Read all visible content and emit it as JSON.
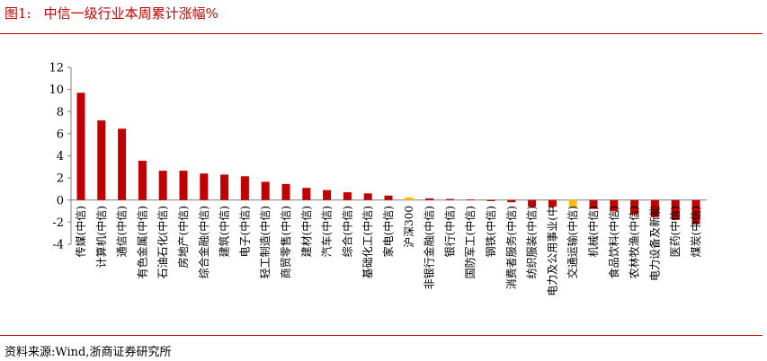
{
  "header": {
    "figure_label": "图1:",
    "title": "中信一级行业本周累计涨幅%"
  },
  "footer": {
    "source": "资料来源:Wind,浙商证券研究所"
  },
  "colors": {
    "accent": "#c00000",
    "bar": "#c00000",
    "highlight": "#ffc000"
  },
  "chart_data": {
    "type": "bar",
    "title": "中信一级行业本周累计涨幅%",
    "xlabel": "",
    "ylabel": "",
    "ylim": [
      -4,
      12
    ],
    "yticks": [
      -4,
      -2,
      0,
      2,
      4,
      6,
      8,
      10,
      12
    ],
    "grid": false,
    "legend": "none",
    "categories": [
      "传媒(中信)",
      "计算机(中信)",
      "通信(中信)",
      "有色金属(中信)",
      "石油石化(中信)",
      "房地产(中信)",
      "综合金融(中信)",
      "建筑(中信)",
      "电子(中信)",
      "轻工制造(中信)",
      "商贸零售(中信)",
      "建材(中信)",
      "汽车(中信)",
      "综合(中信)",
      "基础化工(中信)",
      "家电(中信)",
      "沪深300",
      "非银行金融(中信)",
      "银行(中信)",
      "国防军工(中信)",
      "钢铁(中信)",
      "消费者服务(中信)",
      "纺织服装(中信)",
      "电力及公用事业(中",
      "交通运输(中信)",
      "机械(中信)",
      "食品饮料(中信)",
      "农林牧渔(中信)",
      "电力设备及新能",
      "医药(中信)",
      "煤炭(中信)"
    ],
    "values": [
      9.7,
      7.2,
      6.45,
      3.55,
      2.65,
      2.65,
      2.4,
      2.3,
      2.15,
      1.65,
      1.45,
      1.1,
      0.9,
      0.7,
      0.6,
      0.4,
      0.25,
      0.15,
      0.1,
      0.05,
      -0.1,
      -0.2,
      -0.6,
      -0.6,
      -0.65,
      -0.8,
      -1.0,
      -1.3,
      -1.55,
      -1.8,
      -2.2
    ],
    "highlighted": [
      "沪深300",
      "交通运输(中信)"
    ]
  }
}
